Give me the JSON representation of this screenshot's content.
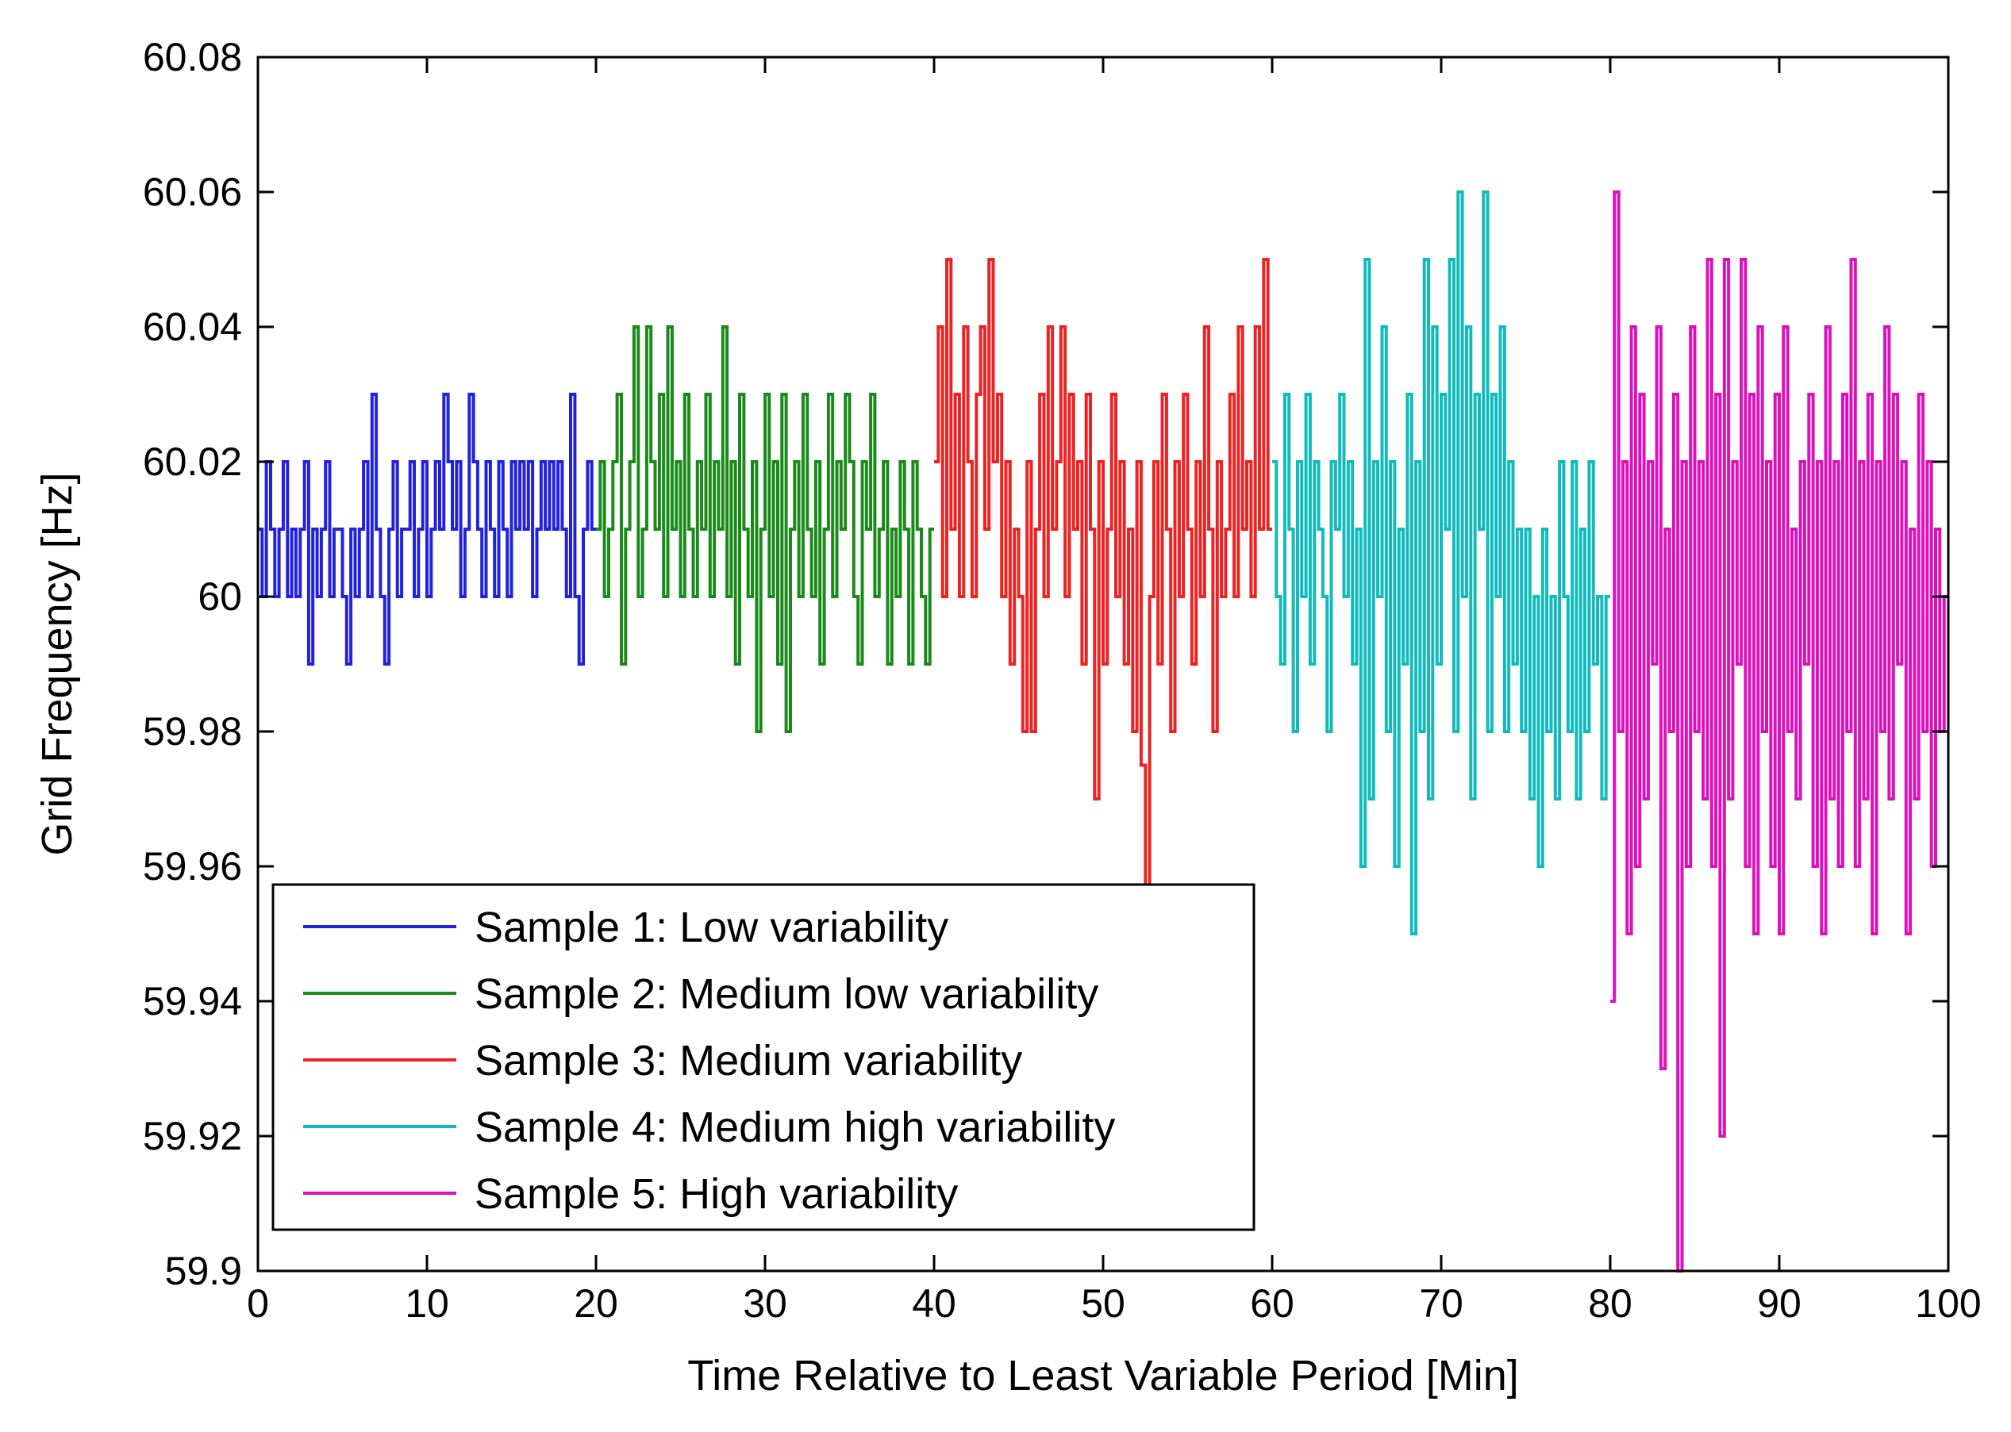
{
  "chart_data": {
    "type": "line",
    "title": "",
    "xlabel": "Time Relative to Least Variable Period [Min]",
    "ylabel": "Grid Frequency [Hz]",
    "xlim": [
      0,
      100
    ],
    "ylim": [
      59.9,
      60.08
    ],
    "grid": false,
    "legend_position": "bottom-left",
    "x_ticks": [
      {
        "v": 0,
        "label": "0"
      },
      {
        "v": 10,
        "label": "10"
      },
      {
        "v": 20,
        "label": "20"
      },
      {
        "v": 30,
        "label": "30"
      },
      {
        "v": 40,
        "label": "40"
      },
      {
        "v": 50,
        "label": "50"
      },
      {
        "v": 60,
        "label": "60"
      },
      {
        "v": 70,
        "label": "70"
      },
      {
        "v": 80,
        "label": "80"
      },
      {
        "v": 90,
        "label": "90"
      },
      {
        "v": 100,
        "label": "100"
      }
    ],
    "y_ticks": [
      {
        "v": 59.9,
        "label": "59.9"
      },
      {
        "v": 59.92,
        "label": "59.92"
      },
      {
        "v": 59.94,
        "label": "59.94"
      },
      {
        "v": 59.96,
        "label": "59.96"
      },
      {
        "v": 59.98,
        "label": "59.98"
      },
      {
        "v": 60,
        "label": "60"
      },
      {
        "v": 60.02,
        "label": "60.02"
      },
      {
        "v": 60.04,
        "label": "60.04"
      },
      {
        "v": 60.06,
        "label": "60.06"
      },
      {
        "v": 60.08,
        "label": "60.08"
      }
    ],
    "series": [
      {
        "name": "Sample 1: Low variability",
        "color": "#2222dd",
        "x_range": [
          0,
          20
        ],
        "values": [
          60.01,
          60.0,
          60.02,
          60.01,
          60.0,
          60.01,
          60.02,
          60.0,
          60.01,
          60.0,
          60.01,
          60.02,
          59.99,
          60.01,
          60.0,
          60.01,
          60.02,
          60.0,
          60.01,
          60.01,
          60.0,
          59.99,
          60.01,
          60.0,
          60.01,
          60.02,
          60.0,
          60.03,
          60.01,
          60.0,
          59.99,
          60.01,
          60.02,
          60.0,
          60.01,
          60.01,
          60.02,
          60.0,
          60.01,
          60.02,
          60.0,
          60.01,
          60.02,
          60.01,
          60.03,
          60.02,
          60.01,
          60.02,
          60.0,
          60.01,
          60.03,
          60.02,
          60.01,
          60.0,
          60.02,
          60.01,
          60.0,
          60.02,
          60.01,
          60.0,
          60.02,
          60.01,
          60.02,
          60.01,
          60.02,
          60.0,
          60.01,
          60.02,
          60.01,
          60.02,
          60.01,
          60.02,
          60.01,
          60.0,
          60.03,
          60.0,
          59.99,
          60.01,
          60.02,
          60.01
        ]
      },
      {
        "name": "Sample 2: Medium low variability",
        "color": "#1a8a1a",
        "x_range": [
          20,
          40
        ],
        "values": [
          60.01,
          60.02,
          60.0,
          60.01,
          60.02,
          60.03,
          59.99,
          60.01,
          60.02,
          60.04,
          60.0,
          60.01,
          60.04,
          60.02,
          60.01,
          60.03,
          60.0,
          60.04,
          60.01,
          60.02,
          60.0,
          60.03,
          60.01,
          60.0,
          60.02,
          60.01,
          60.03,
          60.0,
          60.02,
          60.01,
          60.04,
          60.0,
          60.02,
          59.99,
          60.03,
          60.01,
          60.0,
          60.02,
          59.98,
          60.01,
          60.03,
          60.0,
          60.02,
          59.99,
          60.03,
          59.98,
          60.01,
          60.02,
          60.0,
          60.03,
          60.01,
          60.0,
          60.02,
          59.99,
          60.01,
          60.03,
          60.0,
          60.02,
          60.01,
          60.03,
          60.02,
          60.0,
          59.99,
          60.02,
          60.01,
          60.03,
          60.0,
          60.01,
          60.02,
          59.99,
          60.01,
          60.0,
          60.02,
          60.01,
          59.99,
          60.02,
          60.01,
          60.0,
          59.99,
          60.01
        ]
      },
      {
        "name": "Sample 3: Medium variability",
        "color": "#ee2222",
        "x_range": [
          40,
          60
        ],
        "values": [
          60.02,
          60.04,
          60.0,
          60.05,
          60.01,
          60.03,
          60.0,
          60.04,
          60.02,
          60.0,
          60.03,
          60.04,
          60.01,
          60.05,
          60.02,
          60.03,
          60.0,
          60.02,
          59.99,
          60.01,
          60.0,
          59.98,
          60.02,
          59.98,
          60.01,
          60.03,
          60.0,
          60.04,
          60.01,
          60.02,
          60.04,
          60.0,
          60.03,
          60.01,
          60.02,
          59.99,
          60.03,
          60.01,
          59.97,
          60.02,
          59.99,
          60.01,
          60.03,
          60.0,
          60.02,
          59.99,
          60.01,
          59.98,
          60.02,
          59.975,
          59.955,
          60.0,
          60.02,
          59.99,
          60.03,
          60.01,
          59.98,
          60.02,
          60.0,
          60.03,
          60.01,
          59.99,
          60.02,
          60.0,
          60.04,
          60.01,
          59.98,
          60.02,
          60.0,
          60.01,
          60.03,
          60.0,
          60.04,
          60.01,
          60.02,
          60.0,
          60.04,
          60.01,
          60.05,
          60.01
        ]
      },
      {
        "name": "Sample 4: Medium high variability",
        "color": "#11bbbb",
        "x_range": [
          60,
          80
        ],
        "values": [
          60.02,
          60.0,
          59.99,
          60.03,
          60.01,
          59.98,
          60.02,
          60.0,
          60.03,
          59.99,
          60.02,
          60.01,
          60.0,
          59.98,
          60.02,
          60.01,
          60.03,
          60.0,
          60.02,
          59.99,
          60.01,
          59.96,
          60.05,
          59.97,
          60.02,
          60.0,
          60.04,
          59.98,
          60.02,
          59.96,
          60.01,
          59.99,
          60.03,
          59.95,
          60.02,
          59.98,
          60.05,
          59.97,
          60.04,
          59.99,
          60.03,
          60.01,
          60.05,
          59.98,
          60.06,
          60.0,
          60.04,
          59.97,
          60.03,
          60.01,
          60.06,
          59.98,
          60.03,
          60.0,
          60.04,
          59.98,
          60.02,
          59.99,
          60.01,
          59.98,
          60.01,
          59.97,
          60.0,
          59.96,
          60.01,
          59.98,
          60.0,
          59.97,
          60.02,
          60.0,
          59.98,
          60.02,
          59.97,
          60.01,
          59.98,
          60.02,
          59.99,
          60.0,
          59.97,
          60.0
        ]
      },
      {
        "name": "Sample 5: High variability",
        "color": "#dd11bb",
        "x_range": [
          80,
          100
        ],
        "values": [
          59.94,
          60.06,
          59.98,
          60.02,
          59.95,
          60.04,
          59.96,
          60.03,
          59.97,
          60.02,
          59.99,
          60.04,
          59.93,
          60.01,
          59.98,
          60.03,
          59.9,
          60.02,
          59.96,
          60.04,
          59.98,
          60.02,
          59.97,
          60.05,
          59.96,
          60.03,
          59.92,
          60.05,
          59.97,
          60.02,
          59.99,
          60.05,
          59.96,
          60.03,
          59.95,
          60.04,
          59.98,
          60.02,
          59.96,
          60.03,
          59.95,
          60.04,
          59.98,
          60.01,
          59.97,
          60.02,
          59.99,
          60.03,
          59.96,
          60.02,
          59.95,
          60.04,
          59.97,
          60.02,
          59.96,
          60.03,
          59.98,
          60.05,
          59.96,
          60.02,
          59.97,
          60.03,
          59.95,
          60.02,
          59.98,
          60.04,
          59.97,
          60.03,
          59.99,
          60.02,
          59.95,
          60.01,
          59.97,
          60.03,
          59.98,
          60.02,
          59.96,
          60.01,
          59.98,
          60.0
        ]
      }
    ]
  }
}
